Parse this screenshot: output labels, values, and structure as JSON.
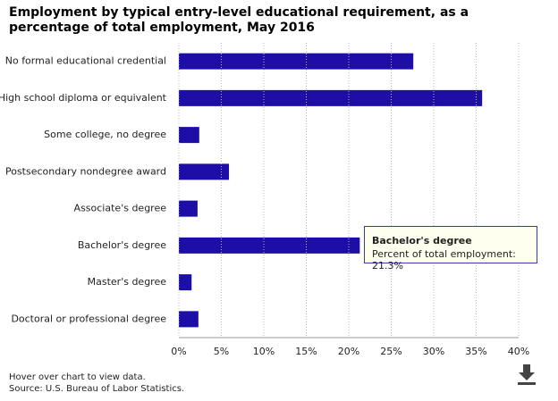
{
  "chart_data": {
    "type": "hbar",
    "title": "Employment by typical entry-level educational requirement, as a percentage of total employment, May 2016",
    "categories": [
      "No formal educational credential",
      "High school diploma or equivalent",
      "Some college, no degree",
      "Postsecondary nondegree award",
      "Associate's degree",
      "Bachelor's degree",
      "Master's degree",
      "Doctoral or professional degree"
    ],
    "values": [
      27.6,
      35.7,
      2.4,
      5.9,
      2.2,
      21.3,
      1.5,
      2.3
    ],
    "color": "#1c0ea6",
    "xlim": [
      0,
      40
    ],
    "xticks": [
      {
        "value": 0,
        "label": "0%"
      },
      {
        "value": 5,
        "label": "5%"
      },
      {
        "value": 10,
        "label": "10%"
      },
      {
        "value": 15,
        "label": "15%"
      },
      {
        "value": 20,
        "label": "20%"
      },
      {
        "value": 25,
        "label": "25%"
      },
      {
        "value": 30,
        "label": "30%"
      },
      {
        "value": 35,
        "label": "35%"
      },
      {
        "value": 40,
        "label": "40%"
      }
    ],
    "grid": true,
    "tooltip": {
      "title": "Bachelor's degree",
      "text": "Percent of total employment: 21.3%"
    },
    "notes": [
      "Hover over chart to view data.",
      "Source: U.S. Bureau of Labor Statistics."
    ]
  }
}
